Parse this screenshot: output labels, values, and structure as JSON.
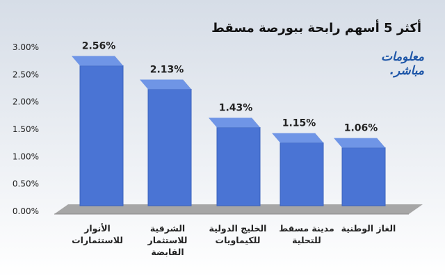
{
  "chart_data": {
    "type": "bar",
    "title": "أكثر 5 أسهم رابحة ببورصة مسقط",
    "categories": [
      "الأنوار للاستثمارات",
      "الشرقية للاستثمار القابضة",
      "الخليج الدولية للكيماويات",
      "مدينة مسقط للتحلية",
      "الغاز الوطنية"
    ],
    "values": [
      2.56,
      2.13,
      1.43,
      1.15,
      1.06
    ],
    "data_labels": [
      "2.56%",
      "2.13%",
      "1.43%",
      "1.15%",
      "1.06%"
    ],
    "ylim": [
      0,
      3
    ],
    "yticks": [
      "0.00%",
      "0.50%",
      "1.00%",
      "1.50%",
      "2.00%",
      "2.50%",
      "3.00%"
    ],
    "xlabel": "",
    "ylabel": "",
    "grid": false,
    "style": "3d-column",
    "colors": {
      "bar_front": "#4a74d4",
      "bar_side": "#2f4f9c",
      "bar_top": "#6f95e6",
      "floor": "#a6a6a6"
    }
  },
  "logo": {
    "line1": "معلومات",
    "line2": "مباشر."
  }
}
